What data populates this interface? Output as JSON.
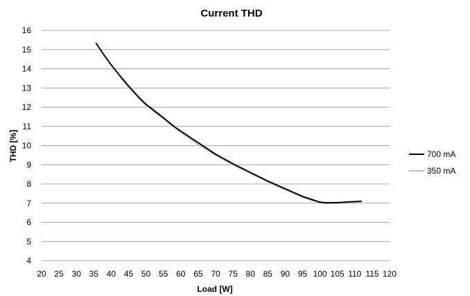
{
  "chart_data": {
    "type": "line",
    "title": "Current THD",
    "xlabel": "Load [W]",
    "ylabel": "THD [%]",
    "xlim": [
      20,
      120
    ],
    "ylim": [
      4,
      16
    ],
    "xticks": [
      "20",
      "25",
      "30",
      "35",
      "40",
      "45",
      "50",
      "55",
      "60",
      "65",
      "70",
      "75",
      "80",
      "85",
      "90",
      "95",
      "100",
      "105",
      "110",
      "115",
      "120"
    ],
    "yticks": [
      "4",
      "5",
      "6",
      "7",
      "8",
      "9",
      "10",
      "11",
      "12",
      "13",
      "14",
      "15",
      "16"
    ],
    "grid": "horizontal",
    "legend": "right",
    "series": [
      {
        "name": "700 mA",
        "color": "#000000",
        "points": [
          [
            35.6,
            15.35
          ],
          [
            38,
            14.7
          ],
          [
            40,
            14.2
          ],
          [
            42,
            13.75
          ],
          [
            45,
            13.1
          ],
          [
            48,
            12.5
          ],
          [
            50,
            12.15
          ],
          [
            55,
            11.45
          ],
          [
            58,
            11.0
          ],
          [
            60,
            10.75
          ],
          [
            65,
            10.15
          ],
          [
            70,
            9.55
          ],
          [
            75,
            9.05
          ],
          [
            80,
            8.6
          ],
          [
            85,
            8.15
          ],
          [
            90,
            7.75
          ],
          [
            95,
            7.35
          ],
          [
            100,
            7.05
          ],
          [
            102,
            7.02
          ],
          [
            105,
            7.03
          ],
          [
            110,
            7.08
          ],
          [
            112,
            7.1
          ]
        ]
      },
      {
        "name": "350 mA",
        "color": "#bfbfbf",
        "points": [
          [
            42,
            13.7
          ],
          [
            45,
            13.05
          ],
          [
            48,
            12.45
          ],
          [
            50,
            12.1
          ],
          [
            55,
            11.4
          ],
          [
            58,
            11.0
          ],
          [
            60,
            10.7
          ],
          [
            65,
            10.05
          ],
          [
            70,
            9.5
          ],
          [
            75,
            9.0
          ],
          [
            80,
            8.55
          ],
          [
            85,
            8.1
          ],
          [
            90,
            7.7
          ],
          [
            95,
            7.3
          ],
          [
            100,
            7.02
          ],
          [
            102,
            6.98
          ],
          [
            105,
            6.99
          ],
          [
            110,
            7.01
          ],
          [
            112,
            7.02
          ]
        ]
      }
    ]
  }
}
